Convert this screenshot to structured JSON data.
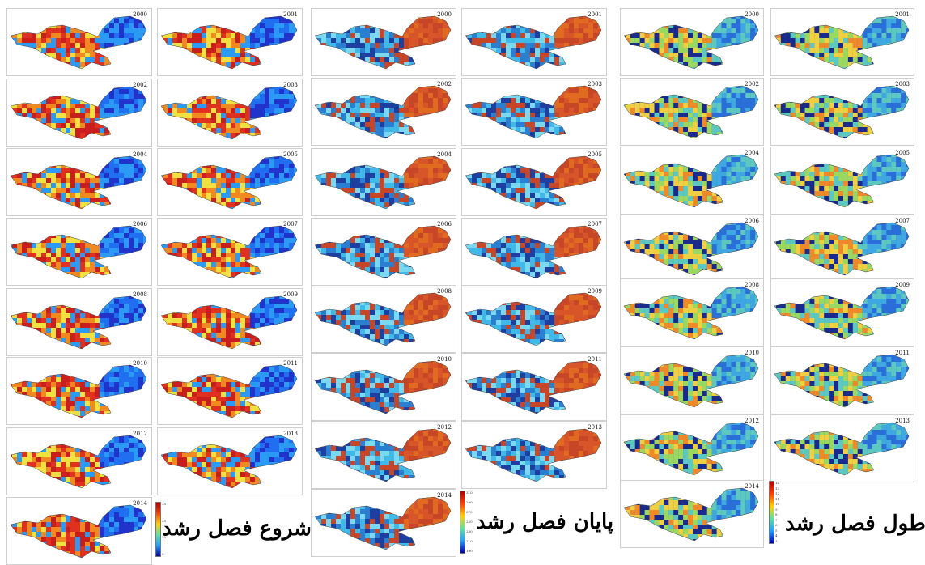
{
  "groups": [
    {
      "id": "sos",
      "caption": "شروع فصل رشد",
      "palette": [
        "#2233cc",
        "#1f6ff0",
        "#2a9af5",
        "#e03020",
        "#c81e1e",
        "#f08a20",
        "#f0e040"
      ],
      "colorbar_ticks": [
        "35",
        "25",
        "15",
        "5"
      ],
      "panels": [
        {
          "year": "2000"
        },
        {
          "year": "2001"
        },
        {
          "year": "2002"
        },
        {
          "year": "2003"
        },
        {
          "year": "2004"
        },
        {
          "year": "2005"
        },
        {
          "year": "2006"
        },
        {
          "year": "2007"
        },
        {
          "year": "2008"
        },
        {
          "year": "2009"
        },
        {
          "year": "2010"
        },
        {
          "year": "2011"
        },
        {
          "year": "2012"
        },
        {
          "year": "2013"
        },
        {
          "year": "2014"
        }
      ]
    },
    {
      "id": "eos",
      "caption": "پایان فصل رشد",
      "palette": [
        "#e06a20",
        "#d8552a",
        "#c84628",
        "#1f3fa0",
        "#2a7fd0",
        "#40b8e8",
        "#7ad8f0"
      ],
      "colorbar_ticks": [
        "310",
        "290",
        "270",
        "250",
        "230",
        "210",
        "190"
      ],
      "panels": [
        {
          "year": "2000"
        },
        {
          "year": "2001"
        },
        {
          "year": "2002"
        },
        {
          "year": "2003"
        },
        {
          "year": "2004"
        },
        {
          "year": "2005"
        },
        {
          "year": "2006"
        },
        {
          "year": "2007"
        },
        {
          "year": "2008"
        },
        {
          "year": "2009"
        },
        {
          "year": "2010"
        },
        {
          "year": "2011"
        },
        {
          "year": "2012"
        },
        {
          "year": "2013"
        },
        {
          "year": "2014"
        }
      ]
    },
    {
      "id": "los",
      "caption": "طول فصل رشد",
      "palette": [
        "#2a6fd8",
        "#3fa8e0",
        "#5cc8c0",
        "#9ad860",
        "#f0d040",
        "#f08a28",
        "#1a2a8a"
      ],
      "colorbar_ticks": [
        "14",
        "13",
        "12",
        "11",
        "10",
        "9",
        "8",
        "7",
        "6",
        "5",
        "4",
        "3"
      ],
      "panels": [
        {
          "year": "2000"
        },
        {
          "year": "2001"
        },
        {
          "year": "2002"
        },
        {
          "year": "2003"
        },
        {
          "year": "2004"
        },
        {
          "year": "2005"
        },
        {
          "year": "2006"
        },
        {
          "year": "2007"
        },
        {
          "year": "2008"
        },
        {
          "year": "2009"
        },
        {
          "year": "2010"
        },
        {
          "year": "2011"
        },
        {
          "year": "2012"
        },
        {
          "year": "2013"
        },
        {
          "year": "2014"
        }
      ]
    }
  ]
}
